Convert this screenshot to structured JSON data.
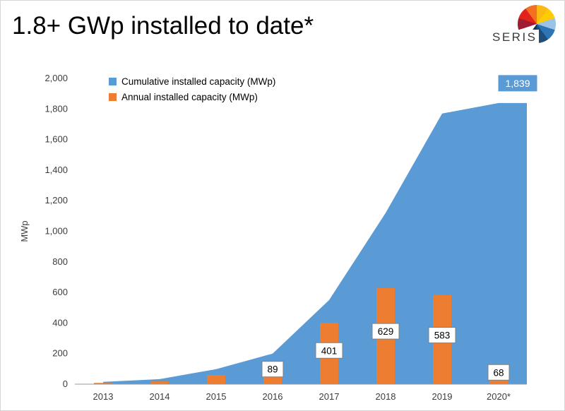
{
  "page": {
    "title": "1.8+ GWp installed to date*"
  },
  "logo": {
    "text": "SERIS",
    "colors": [
      "#FDB913",
      "#FFCB05",
      "#9CC3E5",
      "#2E75B6",
      "#1F4E79",
      "#17365D",
      "#FFFFFF",
      "#9E1B32",
      "#E2231A",
      "#F36F21"
    ]
  },
  "chart_data": {
    "type": "combo",
    "categories": [
      "2013",
      "2014",
      "2015",
      "2016",
      "2017",
      "2018",
      "2019",
      "2020*"
    ],
    "series": [
      {
        "name": "Cumulative installed capacity (MWp)",
        "type": "area",
        "color": "#5B9BD5",
        "values": [
          15,
          33,
          98,
          200,
          550,
          1120,
          1770,
          1839
        ]
      },
      {
        "name": "Annual installed capacity (MWp)",
        "type": "bar",
        "color": "#ED7D31",
        "values": [
          8,
          18,
          60,
          89,
          401,
          629,
          583,
          68
        ]
      }
    ],
    "bar_labels": [
      "",
      "",
      "",
      "89",
      "401",
      "629",
      "583",
      "68"
    ],
    "cumulative_label": "1,839",
    "ylabel": "MWp",
    "ylim": [
      0,
      2000
    ],
    "ytick_step": 200,
    "grid": false,
    "legend_position": "top-left-inside"
  }
}
